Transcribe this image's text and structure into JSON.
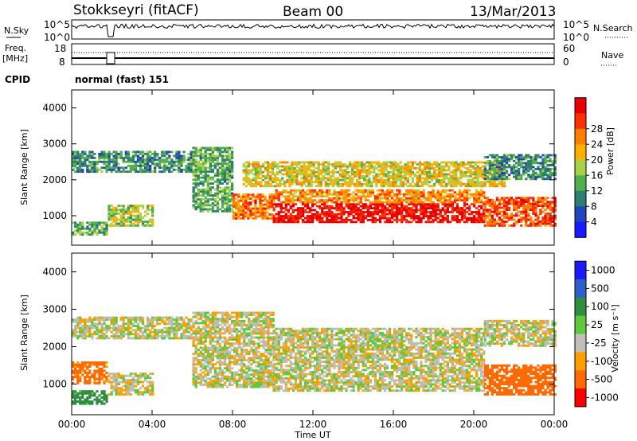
{
  "header": {
    "radar": "Stokkseyri (fitACF)",
    "beam": "Beam 00",
    "date": "13/Mar/2013"
  },
  "strip_panels": {
    "nsky_label": "N.Sky",
    "nsky_ticks": [
      "10^5",
      "10^0"
    ],
    "nsearch_label": "N.Search",
    "nsearch_ticks": [
      "10^5",
      "10^0"
    ],
    "freq_label_1": "Freq.",
    "freq_label_2": "[MHz]",
    "freq_ticks": [
      "18",
      "8"
    ],
    "nave_label": "Nave",
    "nave_ticks": [
      "60",
      "0"
    ],
    "cpid_label": "CPID",
    "cpid_value": "normal (fast) 151"
  },
  "colors": {
    "power_scale": [
      "#1a1aff",
      "#2244bb",
      "#2e7f6e",
      "#52b04c",
      "#a8d24a",
      "#ffb000",
      "#ff8000",
      "#ff3000",
      "#e80000"
    ],
    "velocity_scale": [
      "#1a1aff",
      "#2e60c8",
      "#2e8f40",
      "#60c83c",
      "#c0c0b8",
      "#ffa000",
      "#ff6a00",
      "#ff0000"
    ],
    "ground_scatter": "#bdbdb5"
  },
  "chart_data": [
    {
      "type": "heatmap",
      "panel": "power",
      "ylabel": "Slant Range [km]",
      "ylim": [
        180,
        4500
      ],
      "yticks": [
        "1000",
        "2000",
        "3000",
        "4000"
      ],
      "xlim_hours": [
        0,
        24
      ],
      "colorbar_label": "Power [dB]",
      "colorbar_ticks": [
        "4",
        "8",
        "12",
        "16",
        "20",
        "24",
        "28"
      ],
      "colorbar_range": [
        0,
        32
      ],
      "bands": [
        {
          "t": [
            0.0,
            6.0
          ],
          "r": [
            2200,
            2800
          ],
          "value": 10
        },
        {
          "t": [
            0.0,
            1.8
          ],
          "r": [
            450,
            800
          ],
          "value": 12
        },
        {
          "t": [
            1.8,
            4.0
          ],
          "r": [
            700,
            1300
          ],
          "value": 15
        },
        {
          "t": [
            6.0,
            8.0
          ],
          "r": [
            1100,
            2900
          ],
          "value": 12
        },
        {
          "t": [
            8.0,
            10.0
          ],
          "r": [
            900,
            1600
          ],
          "value": 24
        },
        {
          "t": [
            8.5,
            21.5
          ],
          "r": [
            1800,
            2500
          ],
          "value": 18
        },
        {
          "t": [
            10.0,
            20.5
          ],
          "r": [
            800,
            1350
          ],
          "value": 30
        },
        {
          "t": [
            10.0,
            20.5
          ],
          "r": [
            1350,
            1700
          ],
          "value": 22
        },
        {
          "t": [
            20.5,
            24.0
          ],
          "r": [
            700,
            1500
          ],
          "value": 26
        },
        {
          "t": [
            20.5,
            24.0
          ],
          "r": [
            2000,
            2700
          ],
          "value": 10
        }
      ]
    },
    {
      "type": "heatmap",
      "panel": "velocity",
      "ylabel": "Slant Range [km]",
      "ylim": [
        180,
        4500
      ],
      "yticks": [
        "1000",
        "2000",
        "3000",
        "4000"
      ],
      "xlim_hours": [
        0,
        24
      ],
      "xlabel": "Time UT",
      "xticks": [
        "00:00",
        "04:00",
        "08:00",
        "12:00",
        "16:00",
        "20:00",
        "00:00"
      ],
      "colorbar_label": "Velocity [m s⁻¹]",
      "colorbar_ticks": [
        "1000",
        "500",
        "100",
        "25",
        "-25",
        "-100",
        "-500",
        "-1000"
      ],
      "bands": [
        {
          "t": [
            0.0,
            6.0
          ],
          "r": [
            2200,
            2800
          ],
          "value": 0
        },
        {
          "t": [
            0.0,
            1.8
          ],
          "r": [
            1000,
            1600
          ],
          "value": -150
        },
        {
          "t": [
            0.0,
            1.8
          ],
          "r": [
            450,
            800
          ],
          "value": 150
        },
        {
          "t": [
            1.8,
            4.0
          ],
          "r": [
            700,
            1300
          ],
          "value": 0
        },
        {
          "t": [
            6.0,
            10.0
          ],
          "r": [
            900,
            2900
          ],
          "value": 0
        },
        {
          "t": [
            10.0,
            20.5
          ],
          "r": [
            800,
            2500
          ],
          "value": 0
        },
        {
          "t": [
            20.5,
            24.0
          ],
          "r": [
            700,
            1500
          ],
          "value": -400
        },
        {
          "t": [
            20.5,
            24.0
          ],
          "r": [
            2000,
            2700
          ],
          "value": 0
        }
      ]
    }
  ]
}
